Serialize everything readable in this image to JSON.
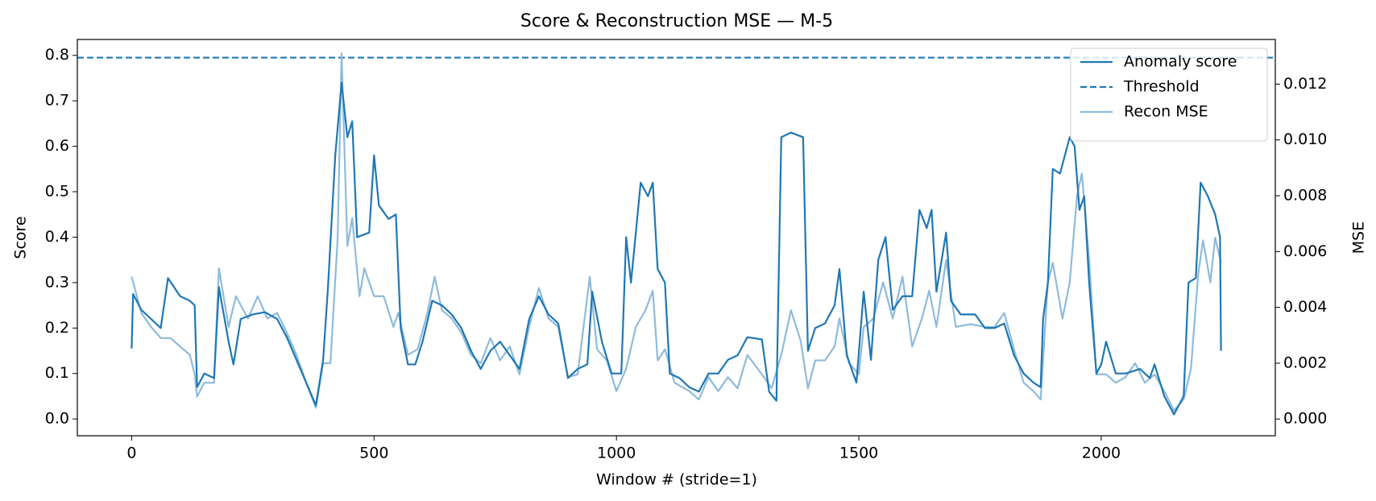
{
  "chart_data": {
    "type": "line",
    "title": "Score & Reconstruction MSE — M-5",
    "x_label": "Window # (stride=1)",
    "y_label": "Score",
    "y2_label": "MSE",
    "xlim": [
      -112,
      2359
    ],
    "xticks": [
      0,
      500,
      1000,
      1500,
      2000
    ],
    "ylim": [
      -0.037,
      0.835
    ],
    "yticks": [
      {
        "value": 0,
        "label": "0.0"
      },
      0.1,
      0.2,
      0.3,
      0.4,
      0.5,
      0.6,
      0.7,
      0.8
    ],
    "y2lim": [
      -0.0006,
      0.0136
    ],
    "y2ticks": [
      {
        "value": 0,
        "label": "0.000"
      },
      0.002,
      0.004,
      0.006,
      0.008,
      {
        "value": 0.01,
        "label": "0.010"
      },
      0.012
    ],
    "legend": "upper right",
    "series": [
      {
        "name": "Anomaly score",
        "color": "#1f77b4",
        "style": "solid",
        "x": [
          0,
          3,
          20,
          40,
          60,
          75,
          100,
          120,
          130,
          135,
          150,
          170,
          180,
          200,
          210,
          225,
          250,
          275,
          300,
          320,
          340,
          360,
          380,
          395,
          405,
          420,
          433,
          445,
          455,
          465,
          490,
          500,
          510,
          530,
          545,
          555,
          570,
          585,
          600,
          620,
          640,
          660,
          680,
          700,
          720,
          740,
          760,
          780,
          800,
          820,
          840,
          860,
          880,
          900,
          920,
          940,
          950,
          970,
          990,
          1010,
          1020,
          1030,
          1050,
          1065,
          1075,
          1085,
          1100,
          1110,
          1130,
          1150,
          1170,
          1190,
          1210,
          1230,
          1250,
          1270,
          1300,
          1315,
          1330,
          1340,
          1360,
          1385,
          1395,
          1410,
          1430,
          1450,
          1460,
          1475,
          1495,
          1510,
          1525,
          1540,
          1555,
          1570,
          1590,
          1610,
          1625,
          1640,
          1650,
          1660,
          1680,
          1690,
          1710,
          1740,
          1760,
          1780,
          1800,
          1820,
          1840,
          1860,
          1875,
          1880,
          1890,
          1900,
          1915,
          1935,
          1945,
          1955,
          1965,
          1975,
          1990,
          2000,
          2010,
          2030,
          2050,
          2080,
          2100,
          2110,
          2130,
          2150,
          2170,
          2180,
          2195,
          2205,
          2220,
          2235,
          2245,
          2247
        ],
        "values": [
          0.155,
          0.275,
          0.24,
          0.22,
          0.2,
          0.31,
          0.27,
          0.26,
          0.25,
          0.07,
          0.1,
          0.09,
          0.29,
          0.17,
          0.12,
          0.22,
          0.23,
          0.235,
          0.22,
          0.18,
          0.13,
          0.08,
          0.03,
          0.13,
          0.29,
          0.58,
          0.74,
          0.62,
          0.655,
          0.4,
          0.41,
          0.58,
          0.47,
          0.44,
          0.45,
          0.2,
          0.12,
          0.12,
          0.17,
          0.26,
          0.25,
          0.23,
          0.2,
          0.15,
          0.11,
          0.15,
          0.17,
          0.14,
          0.11,
          0.22,
          0.27,
          0.23,
          0.21,
          0.09,
          0.11,
          0.12,
          0.28,
          0.17,
          0.1,
          0.1,
          0.4,
          0.3,
          0.52,
          0.49,
          0.52,
          0.33,
          0.3,
          0.1,
          0.09,
          0.07,
          0.06,
          0.1,
          0.1,
          0.13,
          0.14,
          0.18,
          0.175,
          0.06,
          0.04,
          0.62,
          0.63,
          0.62,
          0.15,
          0.2,
          0.21,
          0.25,
          0.33,
          0.14,
          0.08,
          0.28,
          0.13,
          0.35,
          0.4,
          0.24,
          0.27,
          0.27,
          0.46,
          0.42,
          0.46,
          0.28,
          0.41,
          0.26,
          0.23,
          0.23,
          0.2,
          0.2,
          0.21,
          0.14,
          0.1,
          0.08,
          0.07,
          0.22,
          0.3,
          0.55,
          0.54,
          0.62,
          0.6,
          0.46,
          0.49,
          0.3,
          0.1,
          0.12,
          0.17,
          0.1,
          0.1,
          0.11,
          0.09,
          0.12,
          0.05,
          0.01,
          0.05,
          0.3,
          0.31,
          0.52,
          0.49,
          0.45,
          0.4,
          0.15
        ]
      },
      {
        "name": "Threshold",
        "color": "#1f77b4",
        "style": "dashed",
        "value": 0.795
      },
      {
        "name": "Recon MSE",
        "color": "#8fbbd9",
        "style": "solid",
        "axis": "y2",
        "x": [
          0,
          20,
          40,
          60,
          80,
          100,
          120,
          130,
          135,
          150,
          170,
          180,
          200,
          215,
          240,
          260,
          280,
          300,
          320,
          340,
          360,
          380,
          395,
          410,
          425,
          433,
          445,
          455,
          470,
          480,
          500,
          520,
          540,
          550,
          570,
          590,
          610,
          625,
          640,
          660,
          680,
          700,
          720,
          740,
          760,
          780,
          800,
          820,
          840,
          860,
          880,
          900,
          920,
          945,
          960,
          980,
          1000,
          1020,
          1040,
          1060,
          1075,
          1085,
          1100,
          1120,
          1150,
          1170,
          1190,
          1210,
          1230,
          1250,
          1270,
          1300,
          1320,
          1340,
          1360,
          1380,
          1395,
          1410,
          1430,
          1450,
          1460,
          1480,
          1500,
          1510,
          1530,
          1550,
          1570,
          1590,
          1610,
          1630,
          1645,
          1660,
          1680,
          1700,
          1730,
          1760,
          1780,
          1800,
          1820,
          1840,
          1860,
          1875,
          1890,
          1900,
          1920,
          1935,
          1950,
          1960,
          1975,
          1990,
          2010,
          2030,
          2050,
          2070,
          2090,
          2110,
          2130,
          2150,
          2170,
          2185,
          2200,
          2210,
          2225,
          2235,
          2247
        ],
        "values": [
          0.0051,
          0.0038,
          0.0033,
          0.0029,
          0.0029,
          0.0026,
          0.0023,
          0.0016,
          0.0008,
          0.0013,
          0.0013,
          0.0054,
          0.0033,
          0.0044,
          0.0036,
          0.0044,
          0.0036,
          0.0038,
          0.0031,
          0.0023,
          0.0013,
          0.0004,
          0.002,
          0.002,
          0.0065,
          0.0131,
          0.0062,
          0.0072,
          0.0044,
          0.0054,
          0.0044,
          0.0044,
          0.0033,
          0.0038,
          0.0023,
          0.0025,
          0.0038,
          0.0051,
          0.0039,
          0.0036,
          0.0031,
          0.0023,
          0.002,
          0.0029,
          0.0021,
          0.0026,
          0.0016,
          0.0033,
          0.0047,
          0.0036,
          0.0033,
          0.0015,
          0.0016,
          0.0051,
          0.0025,
          0.0021,
          0.001,
          0.0018,
          0.0033,
          0.0039,
          0.0046,
          0.0021,
          0.0025,
          0.0013,
          0.001,
          0.0007,
          0.0015,
          0.001,
          0.0015,
          0.0011,
          0.0023,
          0.0016,
          0.0011,
          0.0023,
          0.0039,
          0.0028,
          0.0011,
          0.0021,
          0.0021,
          0.0026,
          0.0036,
          0.002,
          0.0016,
          0.0033,
          0.0036,
          0.0049,
          0.0036,
          0.0051,
          0.0026,
          0.0036,
          0.0046,
          0.0033,
          0.0057,
          0.0033,
          0.0034,
          0.0033,
          0.0033,
          0.0038,
          0.0025,
          0.0013,
          0.001,
          0.0007,
          0.0049,
          0.0056,
          0.0036,
          0.0049,
          0.008,
          0.0088,
          0.0057,
          0.0016,
          0.0016,
          0.0013,
          0.0015,
          0.002,
          0.0013,
          0.0016,
          0.001,
          0.0003,
          0.0007,
          0.0018,
          0.0052,
          0.0064,
          0.0049,
          0.0065,
          0.0056
        ]
      }
    ]
  }
}
